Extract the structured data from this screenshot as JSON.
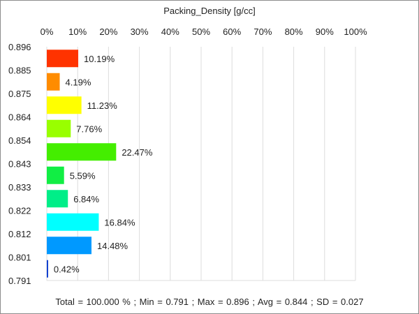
{
  "chart_data": {
    "type": "bar",
    "orientation": "horizontal",
    "title": "Packing_Density [g/cc]",
    "x_axis": {
      "position": "top",
      "ticks": [
        "0%",
        "10%",
        "20%",
        "30%",
        "40%",
        "50%",
        "60%",
        "70%",
        "80%",
        "90%",
        "100%"
      ],
      "range": [
        0,
        100
      ],
      "grid": true
    },
    "y_axis": {
      "ticks": [
        "0.896",
        "0.885",
        "0.875",
        "0.864",
        "0.854",
        "0.843",
        "0.833",
        "0.822",
        "0.812",
        "0.801",
        "0.791"
      ]
    },
    "bars": [
      {
        "value": 10.19,
        "label": "10.19%",
        "color": "#ff3300"
      },
      {
        "value": 4.19,
        "label": "4.19%",
        "color": "#ff8c00"
      },
      {
        "value": 11.23,
        "label": "11.23%",
        "color": "#ffff00"
      },
      {
        "value": 7.76,
        "label": "7.76%",
        "color": "#99ff00"
      },
      {
        "value": 22.47,
        "label": "22.47%",
        "color": "#44ee00"
      },
      {
        "value": 5.59,
        "label": "5.59%",
        "color": "#11ee44"
      },
      {
        "value": 6.84,
        "label": "6.84%",
        "color": "#00ee88"
      },
      {
        "value": 16.84,
        "label": "16.84%",
        "color": "#00ffff"
      },
      {
        "value": 14.48,
        "label": "14.48%",
        "color": "#0099ff"
      },
      {
        "value": 0.42,
        "label": "0.42%",
        "color": "#0033cc"
      }
    ]
  },
  "stats_text": "Total = 100.000 % ; Min = 0.791 ;    Max = 0.896 ;    Avg = 0.844 ;    SD = 0.027"
}
